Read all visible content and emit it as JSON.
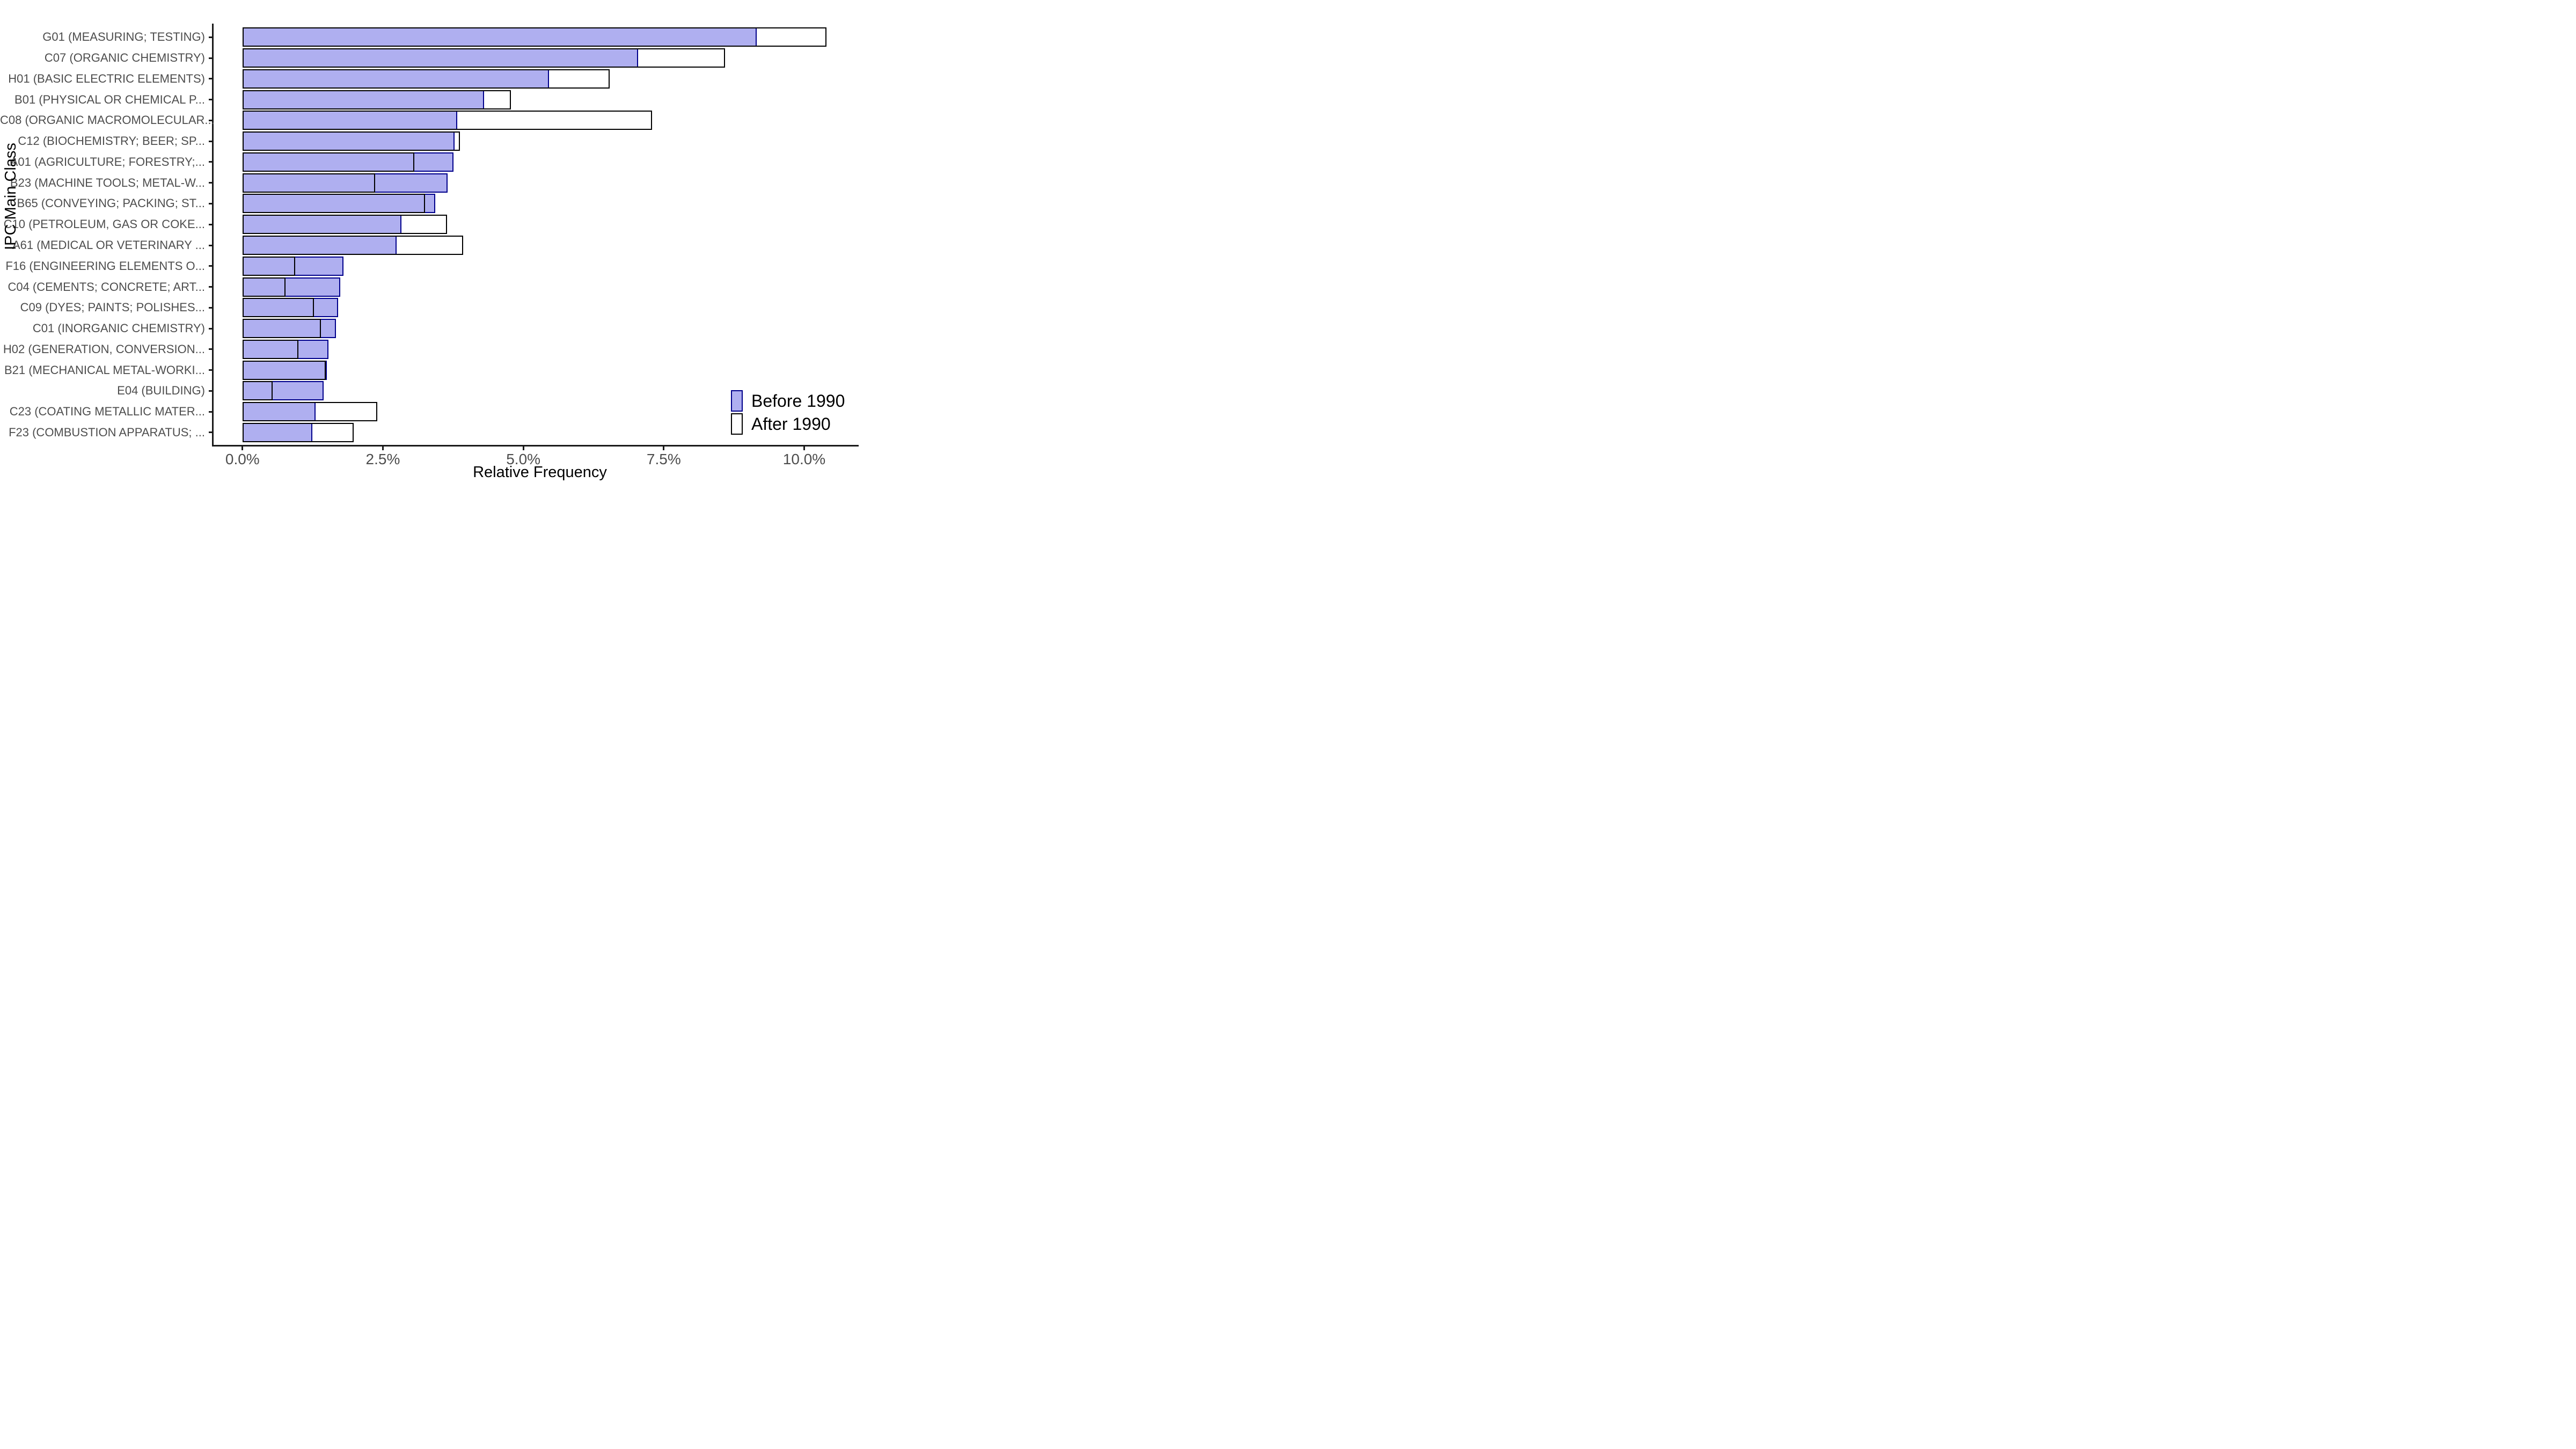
{
  "chart_data": {
    "type": "bar",
    "orientation": "horizontal",
    "title": "",
    "xlabel": "Relative Frequency",
    "ylabel": "IPC Main Class",
    "grid": false,
    "legend_position": "bottom-right",
    "xlim_percent": [
      0,
      10.95
    ],
    "categories": [
      "G01 (MEASURING; TESTING)",
      "C07 (ORGANIC CHEMISTRY)",
      "H01 (BASIC ELECTRIC ELEMENTS)",
      "B01 (PHYSICAL OR CHEMICAL P...",
      "C08 (ORGANIC MACROMOLECULAR...",
      "C12 (BIOCHEMISTRY; BEER; SP...",
      "A01 (AGRICULTURE; FORESTRY;...",
      "B23 (MACHINE TOOLS; METAL-W...",
      "B65 (CONVEYING; PACKING; ST...",
      "C10 (PETROLEUM, GAS OR COKE...",
      "A61 (MEDICAL OR VETERINARY ...",
      "F16 (ENGINEERING ELEMENTS O...",
      "C04 (CEMENTS; CONCRETE; ART...",
      "C09 (DYES; PAINTS; POLISHES...",
      "C01 (INORGANIC CHEMISTRY)",
      "H02 (GENERATION, CONVERSION...",
      "B21 (MECHANICAL METAL-WORKI...",
      "E04 (BUILDING)",
      "C23 (COATING METALLIC MATER...",
      "F23 (COMBUSTION APPARATUS; ..."
    ],
    "series": [
      {
        "name": "Before 1990",
        "fill_color": "#AFAFF0",
        "border_color": "#00008B",
        "values_percent": [
          9.15,
          7.04,
          5.46,
          4.3,
          3.82,
          3.78,
          3.76,
          3.65,
          3.43,
          2.83,
          2.74,
          1.8,
          1.74,
          1.7,
          1.66,
          1.53,
          1.5,
          1.44,
          1.3,
          1.24
        ]
      },
      {
        "name": "After 1990",
        "fill_color": "#FFFFFF",
        "border_color": "#000000",
        "values_percent": [
          10.4,
          8.59,
          6.54,
          4.78,
          7.29,
          3.87,
          3.06,
          2.36,
          3.25,
          3.64,
          3.93,
          0.94,
          0.77,
          1.27,
          1.4,
          1.0,
          1.48,
          0.54,
          2.4,
          1.98
        ]
      }
    ],
    "x_ticks": [
      {
        "label": "0.0%",
        "value": 0.0
      },
      {
        "label": "2.5%",
        "value": 2.5
      },
      {
        "label": "5.0%",
        "value": 5.0
      },
      {
        "label": "7.5%",
        "value": 7.5
      },
      {
        "label": "10.0%",
        "value": 10.0
      }
    ]
  }
}
